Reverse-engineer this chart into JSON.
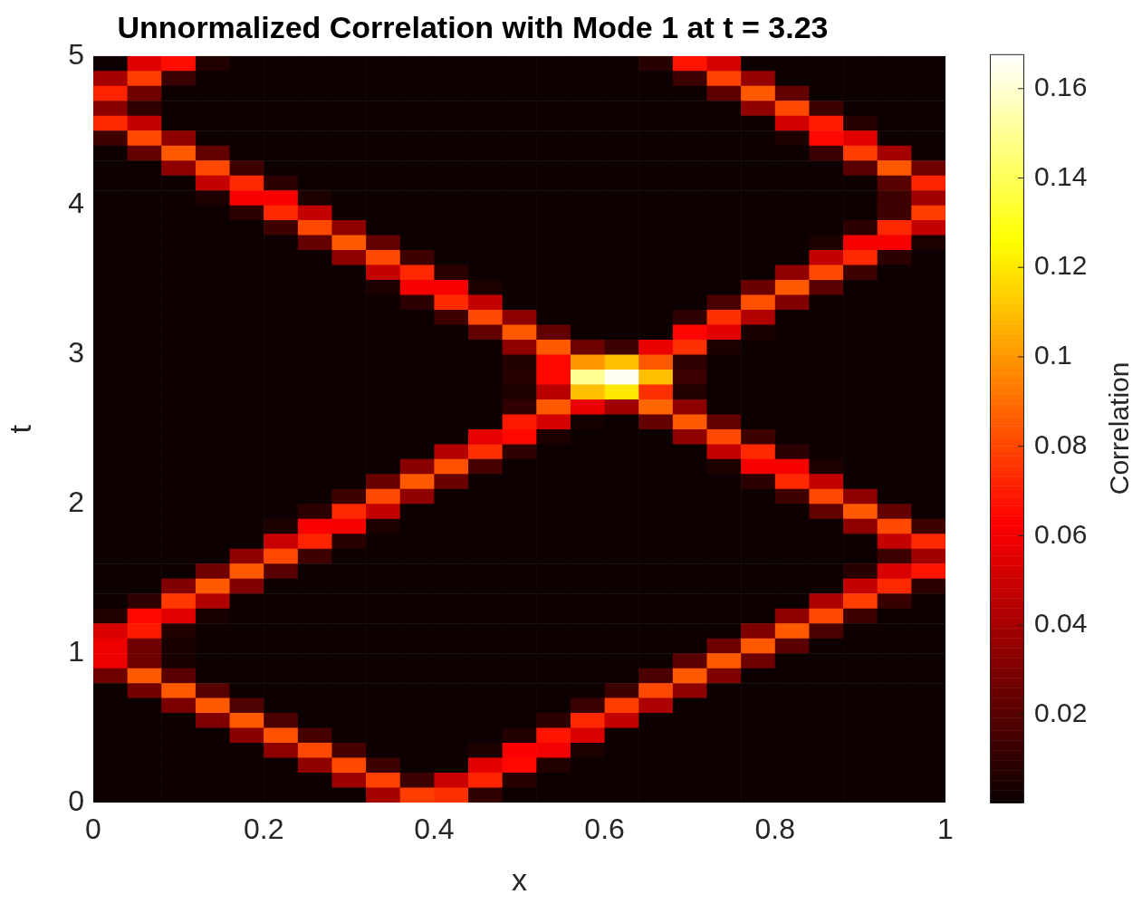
{
  "chart_data": {
    "type": "heatmap",
    "title": "Unnormalized Correlation with Mode 1 at t = 3.23",
    "xlabel": "x",
    "ylabel": "t",
    "clabel": "Correlation",
    "xlim": [
      0,
      1
    ],
    "xticks": [
      0,
      0.2,
      0.4,
      0.6,
      0.8,
      1
    ],
    "ylim": [
      0,
      5
    ],
    "yticks": [
      0,
      1,
      2,
      3,
      4,
      5
    ],
    "grid": false,
    "clim": [
      0.0003,
      0.1677
    ],
    "cticks": [
      0.02,
      0.04,
      0.06,
      0.08,
      0.1,
      0.12,
      0.14,
      0.16
    ],
    "x": [
      0.02,
      0.06,
      0.1,
      0.14,
      0.18,
      0.22,
      0.26,
      0.3,
      0.34,
      0.38,
      0.42,
      0.46,
      0.5,
      0.54,
      0.58,
      0.62,
      0.66,
      0.7,
      0.74,
      0.78,
      0.82,
      0.86,
      0.9,
      0.94,
      0.98
    ],
    "y": [
      4.95,
      4.85,
      4.75,
      4.65,
      4.55,
      4.45,
      4.35,
      4.25,
      4.15,
      4.05,
      3.95,
      3.85,
      3.75,
      3.65,
      3.55,
      3.45,
      3.35,
      3.25,
      3.15,
      3.05,
      2.95,
      2.85,
      2.75,
      2.65,
      2.55,
      2.45,
      2.35,
      2.25,
      2.15,
      2.05,
      1.95,
      1.85,
      1.75,
      1.65,
      1.55,
      1.45,
      1.35,
      1.25,
      1.15,
      1.05,
      0.95,
      0.85,
      0.75,
      0.65,
      0.55,
      0.45,
      0.35,
      0.25,
      0.15,
      0.05
    ],
    "cells": [
      [
        0.001,
        0.055,
        0.066,
        0.0065,
        0.001,
        0.001,
        0.001,
        0.001,
        0.001,
        0.001,
        0.001,
        0.001,
        0.001,
        0.001,
        0.001,
        0.001,
        0.008,
        0.068,
        0.052,
        0.001,
        0.001,
        0.001,
        0.001,
        0.001,
        0.001
      ],
      [
        0.04,
        0.078,
        0.012,
        0.001,
        0.001,
        0.001,
        0.001,
        0.001,
        0.001,
        0.001,
        0.001,
        0.001,
        0.001,
        0.001,
        0.001,
        0.001,
        0.001,
        0.013,
        0.079,
        0.036,
        0.001,
        0.001,
        0.001,
        0.001,
        0.001
      ],
      [
        0.072,
        0.026,
        0.001,
        0.001,
        0.001,
        0.001,
        0.001,
        0.001,
        0.001,
        0.001,
        0.001,
        0.001,
        0.001,
        0.001,
        0.001,
        0.001,
        0.001,
        0.001,
        0.022,
        0.085,
        0.023,
        0.001,
        0.001,
        0.001,
        0.001
      ],
      [
        0.033,
        0.01,
        0.001,
        0.001,
        0.001,
        0.001,
        0.001,
        0.001,
        0.001,
        0.001,
        0.001,
        0.001,
        0.001,
        0.001,
        0.001,
        0.001,
        0.001,
        0.001,
        0.001,
        0.035,
        0.081,
        0.014,
        0.001,
        0.001,
        0.001
      ],
      [
        0.073,
        0.048,
        0.001,
        0.001,
        0.001,
        0.001,
        0.001,
        0.001,
        0.001,
        0.001,
        0.001,
        0.001,
        0.001,
        0.001,
        0.001,
        0.001,
        0.001,
        0.001,
        0.001,
        0.001,
        0.051,
        0.07,
        0.008,
        0.001,
        0.001
      ],
      [
        0.014,
        0.081,
        0.034,
        0.001,
        0.001,
        0.001,
        0.001,
        0.001,
        0.001,
        0.001,
        0.001,
        0.001,
        0.001,
        0.001,
        0.001,
        0.001,
        0.001,
        0.001,
        0.001,
        0.001,
        0.005,
        0.065,
        0.056,
        0.001,
        0.001
      ],
      [
        0.001,
        0.023,
        0.085,
        0.023,
        0.001,
        0.001,
        0.001,
        0.001,
        0.001,
        0.001,
        0.001,
        0.001,
        0.001,
        0.001,
        0.001,
        0.001,
        0.001,
        0.001,
        0.001,
        0.001,
        0.001,
        0.012,
        0.078,
        0.04,
        0.001
      ],
      [
        0.001,
        0.001,
        0.034,
        0.081,
        0.014,
        0.001,
        0.001,
        0.001,
        0.001,
        0.001,
        0.001,
        0.001,
        0.001,
        0.001,
        0.001,
        0.001,
        0.001,
        0.001,
        0.001,
        0.001,
        0.001,
        0.001,
        0.021,
        0.085,
        0.026
      ],
      [
        0.001,
        0.001,
        0.001,
        0.048,
        0.073,
        0.009,
        0.001,
        0.001,
        0.001,
        0.001,
        0.001,
        0.001,
        0.001,
        0.001,
        0.001,
        0.001,
        0.001,
        0.001,
        0.001,
        0.001,
        0.001,
        0.001,
        0.001,
        0.02,
        0.072
      ],
      [
        0.001,
        0.001,
        0.001,
        0.005,
        0.061,
        0.061,
        0.005,
        0.001,
        0.001,
        0.001,
        0.001,
        0.001,
        0.001,
        0.001,
        0.001,
        0.001,
        0.001,
        0.001,
        0.001,
        0.001,
        0.001,
        0.001,
        0.001,
        0.013,
        0.039
      ],
      [
        0.001,
        0.001,
        0.001,
        0.001,
        0.009,
        0.073,
        0.048,
        0.001,
        0.001,
        0.001,
        0.001,
        0.001,
        0.001,
        0.001,
        0.001,
        0.001,
        0.001,
        0.001,
        0.001,
        0.001,
        0.001,
        0.001,
        0.001,
        0.014,
        0.078
      ],
      [
        0.001,
        0.001,
        0.001,
        0.001,
        0.001,
        0.014,
        0.081,
        0.034,
        0.001,
        0.001,
        0.001,
        0.001,
        0.001,
        0.001,
        0.001,
        0.001,
        0.001,
        0.001,
        0.001,
        0.001,
        0.001,
        0.001,
        0.009,
        0.073,
        0.048
      ],
      [
        0.001,
        0.001,
        0.001,
        0.001,
        0.001,
        0.001,
        0.023,
        0.085,
        0.023,
        0.001,
        0.001,
        0.001,
        0.001,
        0.001,
        0.001,
        0.001,
        0.001,
        0.001,
        0.001,
        0.001,
        0.001,
        0.005,
        0.061,
        0.061,
        0.005
      ],
      [
        0.001,
        0.001,
        0.001,
        0.001,
        0.001,
        0.001,
        0.001,
        0.034,
        0.081,
        0.014,
        0.001,
        0.001,
        0.001,
        0.001,
        0.001,
        0.001,
        0.001,
        0.001,
        0.001,
        0.001,
        0.001,
        0.048,
        0.073,
        0.009,
        0.001
      ],
      [
        0.001,
        0.001,
        0.001,
        0.001,
        0.001,
        0.001,
        0.001,
        0.001,
        0.048,
        0.073,
        0.009,
        0.001,
        0.001,
        0.001,
        0.001,
        0.001,
        0.001,
        0.001,
        0.001,
        0.001,
        0.035,
        0.081,
        0.014,
        0.001,
        0.001
      ],
      [
        0.001,
        0.001,
        0.001,
        0.001,
        0.001,
        0.001,
        0.001,
        0.001,
        0.005,
        0.061,
        0.061,
        0.005,
        0.001,
        0.001,
        0.001,
        0.001,
        0.001,
        0.001,
        0.001,
        0.025,
        0.085,
        0.021,
        0.001,
        0.001,
        0.001
      ],
      [
        0.001,
        0.001,
        0.001,
        0.001,
        0.001,
        0.001,
        0.001,
        0.001,
        0.001,
        0.009,
        0.073,
        0.048,
        0.001,
        0.001,
        0.001,
        0.001,
        0.001,
        0.001,
        0.017,
        0.083,
        0.031,
        0.001,
        0.001,
        0.001,
        0.001
      ],
      [
        0.001,
        0.001,
        0.001,
        0.001,
        0.001,
        0.001,
        0.001,
        0.001,
        0.001,
        0.001,
        0.014,
        0.081,
        0.034,
        0.001,
        0.001,
        0.001,
        0.001,
        0.01,
        0.075,
        0.043,
        0.001,
        0.001,
        0.001,
        0.001,
        0.001
      ],
      [
        0.001,
        0.001,
        0.001,
        0.001,
        0.001,
        0.001,
        0.001,
        0.001,
        0.001,
        0.001,
        0.001,
        0.023,
        0.085,
        0.023,
        0.001,
        0.001,
        0.001,
        0.064,
        0.056,
        0.004,
        0.001,
        0.001,
        0.001,
        0.001,
        0.001
      ],
      [
        0.001,
        0.001,
        0.001,
        0.001,
        0.001,
        0.001,
        0.001,
        0.001,
        0.001,
        0.001,
        0.001,
        0.001,
        0.034,
        0.085,
        0.026,
        0.013,
        0.058,
        0.075,
        0.005,
        0.001,
        0.001,
        0.001,
        0.001,
        0.001,
        0.001
      ],
      [
        0.001,
        0.001,
        0.001,
        0.001,
        0.001,
        0.001,
        0.001,
        0.001,
        0.001,
        0.001,
        0.001,
        0.001,
        0.0065,
        0.065,
        0.1,
        0.11,
        0.085,
        0.01,
        0.001,
        0.001,
        0.001,
        0.001,
        0.001,
        0.001,
        0.001
      ],
      [
        0.001,
        0.001,
        0.001,
        0.001,
        0.001,
        0.001,
        0.001,
        0.001,
        0.001,
        0.001,
        0.001,
        0.001,
        0.008,
        0.065,
        0.15,
        0.165,
        0.11,
        0.013,
        0.001,
        0.001,
        0.001,
        0.001,
        0.001,
        0.001,
        0.001
      ],
      [
        0.001,
        0.001,
        0.001,
        0.001,
        0.001,
        0.001,
        0.001,
        0.001,
        0.001,
        0.001,
        0.001,
        0.001,
        0.005,
        0.045,
        0.11,
        0.12,
        0.075,
        0.0065,
        0.001,
        0.001,
        0.001,
        0.001,
        0.001,
        0.001,
        0.001
      ],
      [
        0.001,
        0.001,
        0.001,
        0.001,
        0.001,
        0.001,
        0.001,
        0.001,
        0.001,
        0.001,
        0.001,
        0.001,
        0.01,
        0.085,
        0.058,
        0.039,
        0.088,
        0.034,
        0.001,
        0.001,
        0.001,
        0.001,
        0.001,
        0.001,
        0.001
      ],
      [
        0.001,
        0.001,
        0.001,
        0.001,
        0.001,
        0.001,
        0.001,
        0.001,
        0.001,
        0.001,
        0.001,
        0.001,
        0.069,
        0.052,
        0.003,
        0.001,
        0.023,
        0.085,
        0.023,
        0.001,
        0.001,
        0.001,
        0.001,
        0.001,
        0.001
      ],
      [
        0.001,
        0.001,
        0.001,
        0.001,
        0.001,
        0.001,
        0.001,
        0.001,
        0.001,
        0.001,
        0.001,
        0.057,
        0.065,
        0.005,
        0.001,
        0.001,
        0.001,
        0.034,
        0.081,
        0.014,
        0.001,
        0.001,
        0.001,
        0.001,
        0.001
      ],
      [
        0.001,
        0.001,
        0.001,
        0.001,
        0.001,
        0.001,
        0.001,
        0.001,
        0.001,
        0.001,
        0.044,
        0.075,
        0.01,
        0.001,
        0.001,
        0.001,
        0.001,
        0.001,
        0.048,
        0.073,
        0.009,
        0.001,
        0.001,
        0.001,
        0.001
      ],
      [
        0.001,
        0.001,
        0.001,
        0.001,
        0.001,
        0.001,
        0.001,
        0.001,
        0.001,
        0.033,
        0.083,
        0.016,
        0.001,
        0.001,
        0.001,
        0.001,
        0.001,
        0.001,
        0.005,
        0.061,
        0.061,
        0.005,
        0.001,
        0.001,
        0.001
      ],
      [
        0.001,
        0.001,
        0.001,
        0.001,
        0.001,
        0.001,
        0.001,
        0.001,
        0.025,
        0.085,
        0.025,
        0.001,
        0.001,
        0.001,
        0.001,
        0.001,
        0.001,
        0.001,
        0.001,
        0.009,
        0.073,
        0.048,
        0.001,
        0.001,
        0.001
      ],
      [
        0.001,
        0.001,
        0.001,
        0.001,
        0.001,
        0.001,
        0.001,
        0.014,
        0.081,
        0.035,
        0.001,
        0.001,
        0.001,
        0.001,
        0.001,
        0.001,
        0.001,
        0.001,
        0.001,
        0.001,
        0.014,
        0.081,
        0.034,
        0.001,
        0.001
      ],
      [
        0.001,
        0.001,
        0.001,
        0.001,
        0.001,
        0.001,
        0.009,
        0.073,
        0.048,
        0.001,
        0.001,
        0.001,
        0.001,
        0.001,
        0.001,
        0.001,
        0.001,
        0.001,
        0.001,
        0.001,
        0.001,
        0.023,
        0.085,
        0.023,
        0.001
      ],
      [
        0.001,
        0.001,
        0.001,
        0.001,
        0.001,
        0.005,
        0.062,
        0.061,
        0.005,
        0.001,
        0.001,
        0.001,
        0.001,
        0.001,
        0.001,
        0.001,
        0.001,
        0.001,
        0.001,
        0.001,
        0.001,
        0.001,
        0.034,
        0.081,
        0.014
      ],
      [
        0.001,
        0.001,
        0.001,
        0.001,
        0.001,
        0.049,
        0.072,
        0.008,
        0.001,
        0.001,
        0.001,
        0.001,
        0.001,
        0.001,
        0.001,
        0.001,
        0.001,
        0.001,
        0.001,
        0.001,
        0.001,
        0.001,
        0.001,
        0.048,
        0.073
      ],
      [
        0.001,
        0.001,
        0.001,
        0.001,
        0.035,
        0.081,
        0.014,
        0.001,
        0.001,
        0.001,
        0.001,
        0.001,
        0.001,
        0.001,
        0.001,
        0.001,
        0.001,
        0.001,
        0.001,
        0.001,
        0.001,
        0.001,
        0.001,
        0.013,
        0.039
      ],
      [
        0.001,
        0.001,
        0.001,
        0.026,
        0.085,
        0.021,
        0.001,
        0.001,
        0.001,
        0.001,
        0.001,
        0.001,
        0.001,
        0.001,
        0.001,
        0.001,
        0.001,
        0.001,
        0.001,
        0.001,
        0.001,
        0.001,
        0.008,
        0.053,
        0.068
      ],
      [
        0.001,
        0.001,
        0.031,
        0.085,
        0.031,
        0.001,
        0.001,
        0.001,
        0.001,
        0.001,
        0.001,
        0.001,
        0.001,
        0.001,
        0.001,
        0.001,
        0.001,
        0.001,
        0.001,
        0.001,
        0.001,
        0.001,
        0.048,
        0.073,
        0.009
      ],
      [
        0.001,
        0.01,
        0.077,
        0.043,
        0.001,
        0.001,
        0.001,
        0.001,
        0.001,
        0.001,
        0.001,
        0.001,
        0.001,
        0.001,
        0.001,
        0.001,
        0.001,
        0.001,
        0.001,
        0.001,
        0.001,
        0.042,
        0.078,
        0.012,
        0.001
      ],
      [
        0.0065,
        0.065,
        0.056,
        0.004,
        0.001,
        0.001,
        0.001,
        0.001,
        0.001,
        0.001,
        0.001,
        0.001,
        0.001,
        0.001,
        0.001,
        0.001,
        0.001,
        0.001,
        0.001,
        0.001,
        0.035,
        0.081,
        0.014,
        0.001,
        0.001
      ],
      [
        0.053,
        0.069,
        0.0065,
        0.001,
        0.001,
        0.001,
        0.001,
        0.001,
        0.001,
        0.001,
        0.001,
        0.001,
        0.001,
        0.001,
        0.001,
        0.001,
        0.001,
        0.001,
        0.001,
        0.03,
        0.085,
        0.017,
        0.001,
        0.001,
        0.001
      ],
      [
        0.059,
        0.026,
        0.004,
        0.001,
        0.001,
        0.001,
        0.001,
        0.001,
        0.001,
        0.001,
        0.001,
        0.001,
        0.001,
        0.001,
        0.001,
        0.001,
        0.001,
        0.001,
        0.026,
        0.085,
        0.021,
        0.001,
        0.001,
        0.001,
        0.001
      ],
      [
        0.059,
        0.026,
        0.004,
        0.001,
        0.001,
        0.001,
        0.001,
        0.001,
        0.001,
        0.001,
        0.001,
        0.001,
        0.001,
        0.001,
        0.001,
        0.001,
        0.001,
        0.021,
        0.085,
        0.026,
        0.001,
        0.001,
        0.001,
        0.001,
        0.001
      ],
      [
        0.026,
        0.085,
        0.021,
        0.001,
        0.001,
        0.001,
        0.001,
        0.001,
        0.001,
        0.001,
        0.001,
        0.001,
        0.001,
        0.001,
        0.001,
        0.001,
        0.017,
        0.085,
        0.03,
        0.001,
        0.001,
        0.001,
        0.001,
        0.001,
        0.001
      ],
      [
        0.001,
        0.027,
        0.085,
        0.02,
        0.001,
        0.001,
        0.001,
        0.001,
        0.001,
        0.001,
        0.001,
        0.001,
        0.001,
        0.001,
        0.001,
        0.014,
        0.081,
        0.035,
        0.001,
        0.001,
        0.001,
        0.001,
        0.001,
        0.001,
        0.001
      ],
      [
        0.001,
        0.001,
        0.029,
        0.085,
        0.018,
        0.001,
        0.001,
        0.001,
        0.001,
        0.001,
        0.001,
        0.001,
        0.001,
        0.001,
        0.012,
        0.078,
        0.042,
        0.001,
        0.001,
        0.001,
        0.001,
        0.001,
        0.001,
        0.001,
        0.001
      ],
      [
        0.001,
        0.001,
        0.001,
        0.03,
        0.085,
        0.017,
        0.001,
        0.001,
        0.001,
        0.001,
        0.001,
        0.001,
        0.001,
        0.009,
        0.073,
        0.048,
        0.001,
        0.001,
        0.001,
        0.001,
        0.001,
        0.001,
        0.001,
        0.001,
        0.001
      ],
      [
        0.001,
        0.001,
        0.001,
        0.001,
        0.033,
        0.083,
        0.016,
        0.001,
        0.001,
        0.001,
        0.001,
        0.001,
        0.0065,
        0.068,
        0.053,
        0.001,
        0.001,
        0.001,
        0.001,
        0.001,
        0.001,
        0.001,
        0.001,
        0.001,
        0.001
      ],
      [
        0.001,
        0.001,
        0.001,
        0.001,
        0.001,
        0.034,
        0.081,
        0.016,
        0.001,
        0.001,
        0.001,
        0.005,
        0.062,
        0.06,
        0.005,
        0.001,
        0.001,
        0.001,
        0.001,
        0.001,
        0.001,
        0.001,
        0.001,
        0.001,
        0.001
      ],
      [
        0.001,
        0.001,
        0.001,
        0.001,
        0.001,
        0.001,
        0.035,
        0.081,
        0.014,
        0.001,
        0.001,
        0.056,
        0.065,
        0.0065,
        0.001,
        0.001,
        0.001,
        0.001,
        0.001,
        0.001,
        0.001,
        0.001,
        0.001,
        0.001,
        0.001
      ],
      [
        0.001,
        0.001,
        0.001,
        0.001,
        0.001,
        0.001,
        0.001,
        0.038,
        0.079,
        0.013,
        0.049,
        0.072,
        0.008,
        0.001,
        0.001,
        0.001,
        0.001,
        0.001,
        0.001,
        0.001,
        0.001,
        0.001,
        0.001,
        0.001,
        0.001
      ],
      [
        0.001,
        0.001,
        0.001,
        0.001,
        0.001,
        0.001,
        0.001,
        0.001,
        0.04,
        0.078,
        0.075,
        0.01,
        0.001,
        0.001,
        0.001,
        0.001,
        0.001,
        0.001,
        0.001,
        0.001,
        0.001,
        0.001,
        0.001,
        0.001,
        0.001
      ]
    ]
  }
}
